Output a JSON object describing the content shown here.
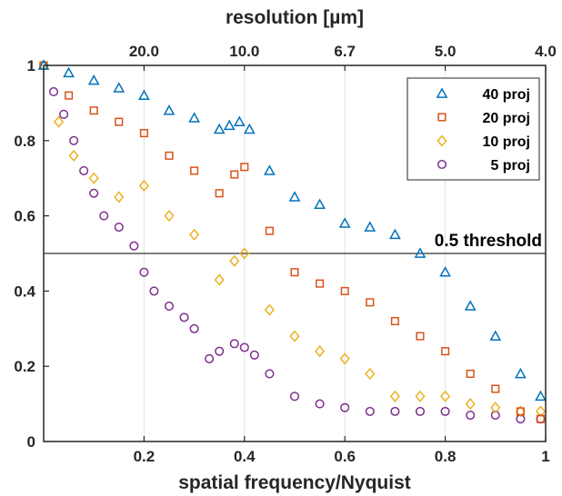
{
  "chart_data": {
    "type": "scatter",
    "xlabel": "spatial frequency/Nyquist",
    "top_xlabel": "resolution [µm]",
    "xlim": [
      0,
      1
    ],
    "ylim": [
      0,
      1
    ],
    "x_ticks": [
      0.2,
      0.4,
      0.6,
      0.8,
      1
    ],
    "x_tick_labels": [
      "0.2",
      "0.4",
      "0.6",
      "0.8",
      "1"
    ],
    "y_ticks": [
      0,
      0.2,
      0.4,
      0.6,
      0.8,
      1
    ],
    "y_tick_labels": [
      "0",
      "0.2",
      "0.4",
      "0.6",
      "0.8",
      "1"
    ],
    "top_ticks": [
      0.2,
      0.4,
      0.6,
      0.8,
      1.0
    ],
    "top_tick_labels": [
      "20.0",
      "10.0",
      "6.7",
      "5.0",
      "4.0"
    ],
    "grid": "vertical",
    "legend_position": "top-right",
    "threshold": {
      "y": 0.5,
      "label": "0.5 threshold"
    },
    "series": [
      {
        "name": "40 proj",
        "marker": "triangle",
        "color": "#0072BD",
        "x": [
          0.0,
          0.05,
          0.1,
          0.15,
          0.2,
          0.25,
          0.3,
          0.35,
          0.37,
          0.39,
          0.41,
          0.45,
          0.5,
          0.55,
          0.6,
          0.65,
          0.7,
          0.75,
          0.8,
          0.85,
          0.9,
          0.95,
          0.99
        ],
        "y": [
          1.0,
          0.98,
          0.96,
          0.94,
          0.92,
          0.88,
          0.86,
          0.83,
          0.84,
          0.85,
          0.83,
          0.72,
          0.65,
          0.63,
          0.58,
          0.57,
          0.55,
          0.5,
          0.45,
          0.36,
          0.28,
          0.18,
          0.12
        ]
      },
      {
        "name": "20 proj",
        "marker": "square",
        "color": "#D95319",
        "x": [
          0.0,
          0.05,
          0.1,
          0.15,
          0.2,
          0.25,
          0.3,
          0.35,
          0.38,
          0.4,
          0.45,
          0.5,
          0.55,
          0.6,
          0.65,
          0.7,
          0.75,
          0.8,
          0.85,
          0.9,
          0.95,
          0.99
        ],
        "y": [
          1.0,
          0.92,
          0.88,
          0.85,
          0.82,
          0.76,
          0.72,
          0.66,
          0.71,
          0.73,
          0.56,
          0.45,
          0.42,
          0.4,
          0.37,
          0.32,
          0.28,
          0.24,
          0.18,
          0.14,
          0.08,
          0.06
        ]
      },
      {
        "name": "10 proj",
        "marker": "diamond",
        "color": "#EDB120",
        "x": [
          0.0,
          0.03,
          0.06,
          0.1,
          0.15,
          0.2,
          0.25,
          0.3,
          0.35,
          0.38,
          0.4,
          0.45,
          0.5,
          0.55,
          0.6,
          0.65,
          0.7,
          0.75,
          0.8,
          0.85,
          0.9,
          0.95,
          0.99
        ],
        "y": [
          1.0,
          0.85,
          0.76,
          0.7,
          0.65,
          0.68,
          0.6,
          0.55,
          0.43,
          0.48,
          0.5,
          0.35,
          0.28,
          0.24,
          0.22,
          0.18,
          0.12,
          0.12,
          0.12,
          0.1,
          0.09,
          0.08,
          0.08
        ]
      },
      {
        "name": "5 proj",
        "marker": "circle",
        "color": "#7E2F8E",
        "x": [
          0.0,
          0.02,
          0.04,
          0.06,
          0.08,
          0.1,
          0.12,
          0.15,
          0.18,
          0.2,
          0.22,
          0.25,
          0.28,
          0.3,
          0.33,
          0.35,
          0.38,
          0.4,
          0.42,
          0.45,
          0.5,
          0.55,
          0.6,
          0.65,
          0.7,
          0.75,
          0.8,
          0.85,
          0.9,
          0.95,
          0.99
        ],
        "y": [
          1.0,
          0.93,
          0.87,
          0.8,
          0.72,
          0.66,
          0.6,
          0.57,
          0.52,
          0.45,
          0.4,
          0.36,
          0.33,
          0.3,
          0.22,
          0.24,
          0.26,
          0.25,
          0.23,
          0.18,
          0.12,
          0.1,
          0.09,
          0.08,
          0.08,
          0.08,
          0.08,
          0.07,
          0.07,
          0.06,
          0.06
        ]
      }
    ]
  }
}
